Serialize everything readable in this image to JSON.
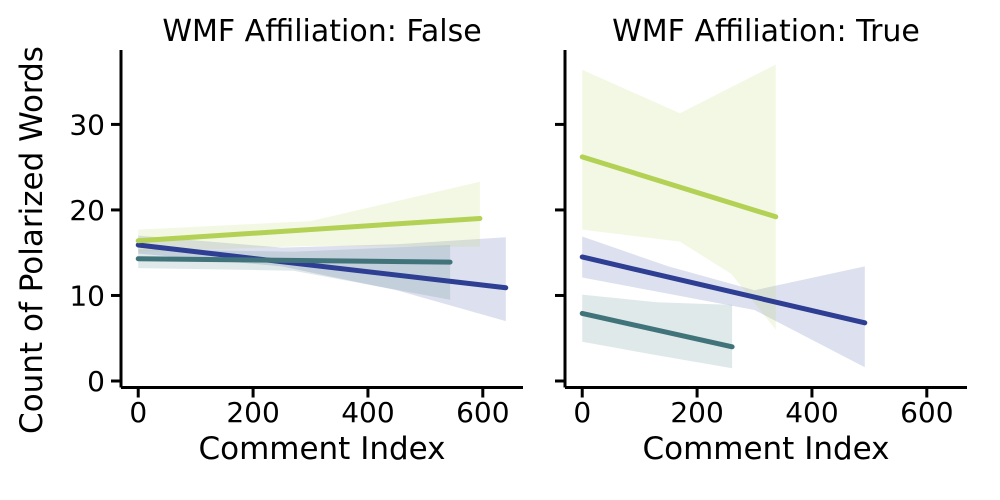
{
  "figure": {
    "background": "#ffffff",
    "text_color": "#000000",
    "spine_color": "#000000"
  },
  "chart_data": {
    "type": "line",
    "subtype": "faceted-regression-with-confidence-bands",
    "xlabel": "Comment Index",
    "ylabel": "Count of Polarized Words",
    "xticks": [
      0,
      200,
      400,
      600
    ],
    "yticks": [
      0,
      10,
      20,
      30
    ],
    "xlim": [
      -30,
      670
    ],
    "ylim": [
      -0.76,
      38.7
    ],
    "grid": false,
    "legend": "none",
    "band_opacity": 0.16,
    "facets": [
      {
        "title": "WMF Affiliation: False",
        "series": [
          {
            "name": "navy",
            "color": "#2d3e93",
            "line": [
              [
                0,
                15.9
              ],
              [
                640,
                10.9
              ]
            ],
            "band": [
              [
                0,
                17.0
              ],
              [
                250,
                15.6
              ],
              [
                450,
                16.0
              ],
              [
                640,
                16.8
              ],
              [
                640,
                7.0
              ],
              [
                450,
                10.6
              ],
              [
                250,
                13.4
              ],
              [
                0,
                14.9
              ]
            ]
          },
          {
            "name": "teal",
            "color": "#41747a",
            "line": [
              [
                0,
                14.3
              ],
              [
                543,
                13.9
              ]
            ],
            "band": [
              [
                0,
                15.4
              ],
              [
                270,
                15.1
              ],
              [
                543,
                15.9
              ],
              [
                543,
                9.5
              ],
              [
                270,
                12.9
              ],
              [
                0,
                13.2
              ]
            ]
          },
          {
            "name": "green",
            "color": "#b2d155",
            "line": [
              [
                0,
                16.4
              ],
              [
                595,
                19.0
              ]
            ],
            "band": [
              [
                0,
                17.7
              ],
              [
                300,
                18.7
              ],
              [
                595,
                23.3
              ],
              [
                595,
                15.7
              ],
              [
                300,
                15.8
              ],
              [
                0,
                15.1
              ]
            ]
          }
        ]
      },
      {
        "title": "WMF Affiliation: True",
        "series": [
          {
            "name": "navy",
            "color": "#2d3e93",
            "line": [
              [
                0,
                14.5
              ],
              [
                492,
                6.8
              ]
            ],
            "band": [
              [
                0,
                16.9
              ],
              [
                150,
                13.4
              ],
              [
                300,
                10.6
              ],
              [
                492,
                13.4
              ],
              [
                492,
                1.6
              ],
              [
                300,
                8.3
              ],
              [
                150,
                10.2
              ],
              [
                0,
                12.1
              ]
            ]
          },
          {
            "name": "teal",
            "color": "#41747a",
            "line": [
              [
                0,
                7.9
              ],
              [
                261,
                4.0
              ]
            ],
            "band": [
              [
                0,
                10.1
              ],
              [
                130,
                9.2
              ],
              [
                261,
                8.9
              ],
              [
                261,
                1.5
              ],
              [
                130,
                3.0
              ],
              [
                0,
                4.6
              ]
            ]
          },
          {
            "name": "green",
            "color": "#b2d155",
            "line": [
              [
                0,
                26.2
              ],
              [
                337,
                19.2
              ]
            ],
            "band": [
              [
                0,
                36.4
              ],
              [
                170,
                31.3
              ],
              [
                337,
                37.0
              ],
              [
                337,
                6.0
              ],
              [
                260,
                12.5
              ],
              [
                170,
                16.3
              ],
              [
                0,
                17.7
              ]
            ]
          }
        ]
      }
    ]
  }
}
